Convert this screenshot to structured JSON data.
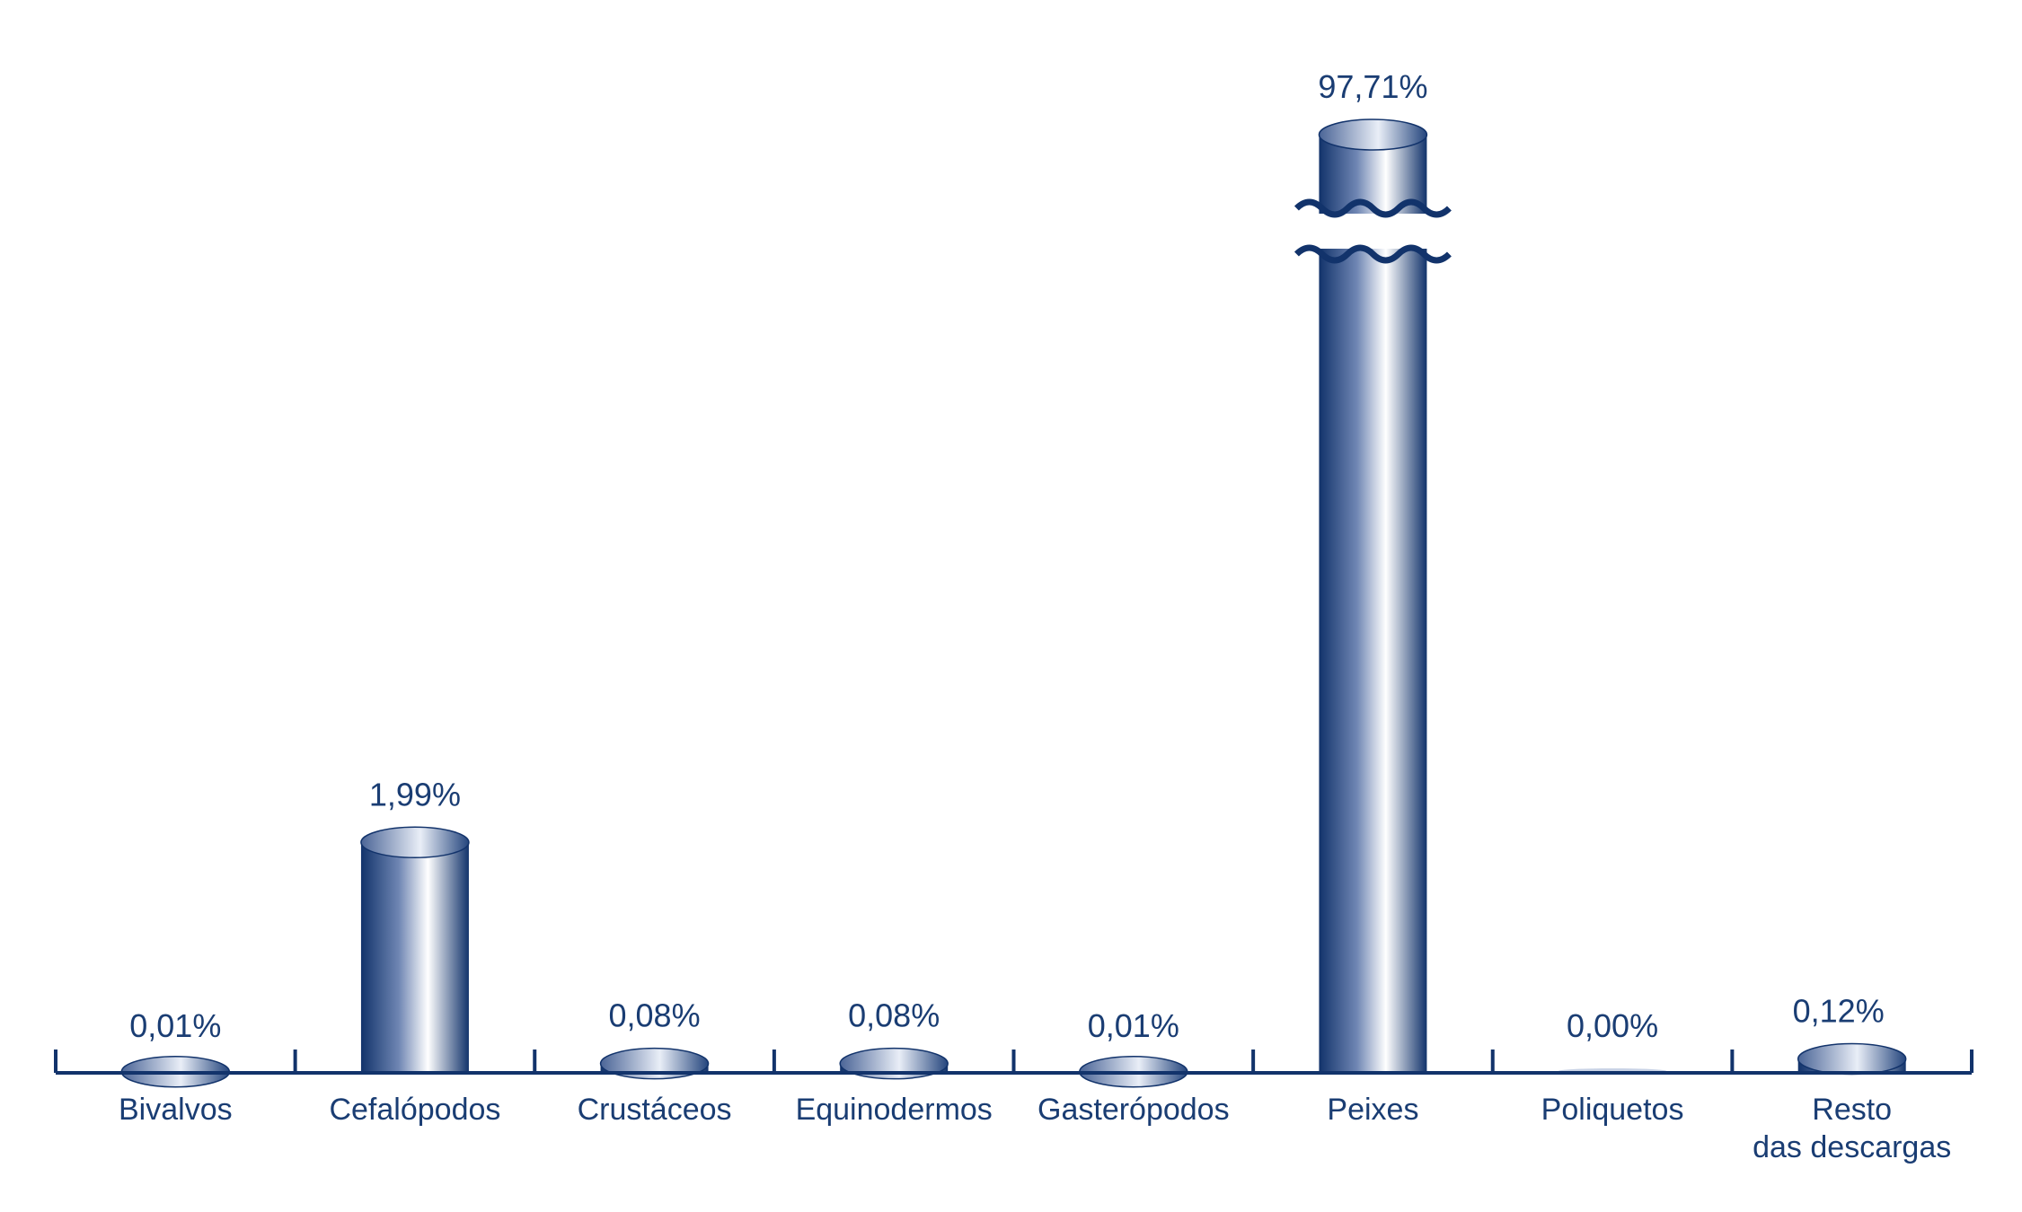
{
  "chart_data": {
    "type": "bar",
    "categories": [
      [
        "Bivalvos"
      ],
      [
        "Cefalópodos"
      ],
      [
        "Crustáceos"
      ],
      [
        "Equinodermos"
      ],
      [
        "Gasterópodos"
      ],
      [
        "Peixes"
      ],
      [
        "Poliquetos"
      ],
      [
        "Resto",
        "das descargas"
      ]
    ],
    "values": [
      0.01,
      1.99,
      0.08,
      0.08,
      0.01,
      97.71,
      0.0,
      0.12
    ],
    "value_labels": [
      "0,01%",
      "1,99%",
      "0,08%",
      "0,08%",
      "0,01%",
      "97,71%",
      "0,00%",
      "0,12%"
    ],
    "axis_break": {
      "category_index": 5
    },
    "ylim": [
      0,
      3.5
    ],
    "colors": {
      "bar_dark": "#12336b",
      "bar_light": "#ffffff",
      "text": "#1a3d73"
    }
  }
}
